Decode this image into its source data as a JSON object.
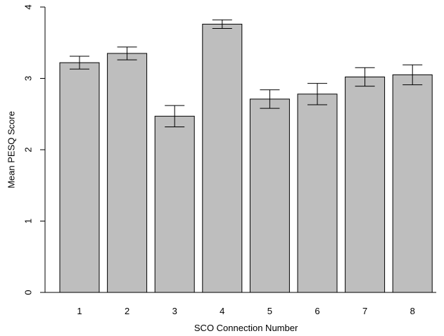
{
  "chart_data": {
    "type": "bar",
    "xlabel": "SCO Connection Number",
    "ylabel": "Mean PESQ Score",
    "ylim": [
      0,
      4
    ],
    "yticks": [
      0,
      1,
      2,
      3,
      4
    ],
    "categories": [
      "1",
      "2",
      "3",
      "4",
      "5",
      "6",
      "7",
      "8"
    ],
    "values": [
      3.22,
      3.35,
      2.47,
      3.76,
      2.71,
      2.78,
      3.02,
      3.05
    ],
    "error_low": [
      3.13,
      3.26,
      2.32,
      3.7,
      2.58,
      2.63,
      2.89,
      2.91
    ],
    "error_high": [
      3.31,
      3.44,
      2.62,
      3.82,
      2.84,
      2.93,
      3.15,
      3.19
    ],
    "colors": {
      "bar_fill": "#bebebe",
      "bar_stroke": "#000000"
    },
    "grid": false,
    "legend": "none"
  }
}
